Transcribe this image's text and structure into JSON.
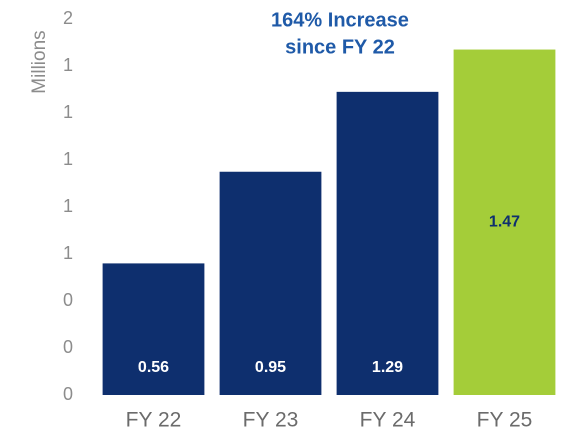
{
  "chart_data": {
    "type": "bar",
    "annotation": [
      "164% Increase",
      "since FY 22"
    ],
    "y_axis_label": "Millions",
    "categories": [
      "FY 22",
      "FY 23",
      "FY 24",
      "FY 25"
    ],
    "values": [
      0.56,
      0.95,
      1.29,
      1.47
    ],
    "colors": [
      "#0e2f6e",
      "#0e2f6e",
      "#0e2f6e",
      "#a4cd39"
    ],
    "value_label_colors": [
      "#ffffff",
      "#ffffff",
      "#ffffff",
      "#0e2f6e"
    ],
    "ylim": [
      0,
      1.6
    ],
    "yticks": [
      0,
      {
        "value": 0.2,
        "label": "0"
      },
      {
        "value": 0.4,
        "label": "0"
      },
      {
        "value": 0.6,
        "label": "1"
      },
      {
        "value": 0.8,
        "label": "1"
      },
      1,
      {
        "value": 1.2,
        "label": "1"
      },
      {
        "value": 1.4,
        "label": "1"
      },
      {
        "value": 1.6,
        "label": "2"
      }
    ],
    "grid": false
  }
}
